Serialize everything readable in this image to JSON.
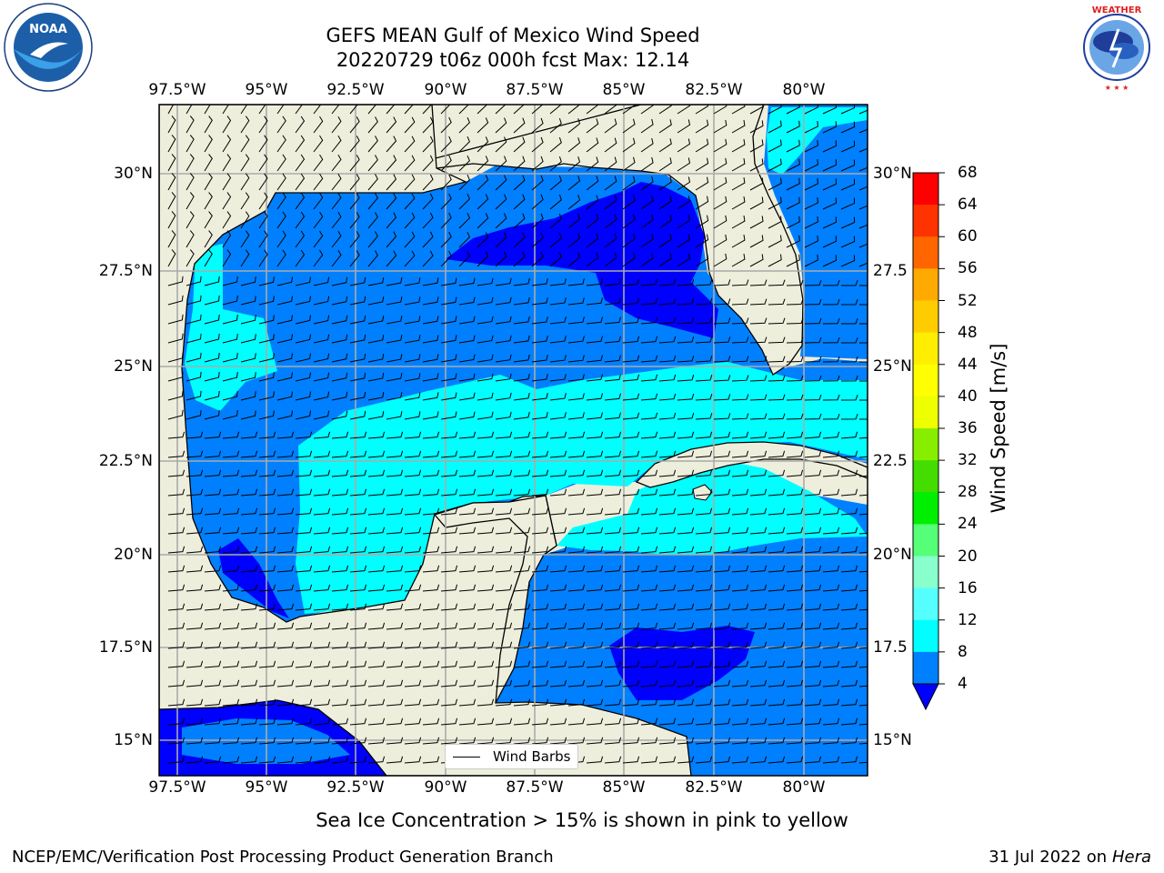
{
  "title": {
    "line1": "GEFS MEAN Gulf of Mexico Wind Speed",
    "line2": "20220729 t06z 000h fcst   Max: 12.14"
  },
  "axes": {
    "lon_labels": [
      "97.5°W",
      "95°W",
      "92.5°W",
      "90°W",
      "87.5°W",
      "85°W",
      "82.5°W",
      "80°W"
    ],
    "lat_labels_left": [
      "30°N",
      "27.5°N",
      "25°N",
      "22.5°N",
      "20°N",
      "17.5°N",
      "15°N"
    ],
    "lat_labels_right": [
      "30°N",
      "27.5",
      "25°N",
      "22.5",
      "20°N",
      "17.5",
      "15°N"
    ]
  },
  "colorbar": {
    "label": "Wind Speed [m/s]",
    "ticks": [
      "68",
      "64",
      "60",
      "56",
      "52",
      "48",
      "44",
      "40",
      "36",
      "32",
      "28",
      "24",
      "20",
      "16",
      "12",
      "8",
      "4"
    ],
    "colors": [
      "#ff0000",
      "#ff3300",
      "#ff6600",
      "#ff8800",
      "#ffaa00",
      "#ffcc00",
      "#ffee00",
      "#ffff00",
      "#eeff00",
      "#ccff00",
      "#88ee00",
      "#44dd00",
      "#00ee00",
      "#55ff77",
      "#88ffcc",
      "#99ffff",
      "#55ffff",
      "#00ffff",
      "#0080ff",
      "#0000ff"
    ]
  },
  "legend": {
    "label": "Wind Barbs"
  },
  "note": "Sea Ice Concentration > 15% is shown in pink to yellow",
  "footer": {
    "left": "NCEP/EMC/Verification Post Processing Product Generation Branch",
    "right_date": "31 Jul 2022 on ",
    "right_machine": "Hera"
  },
  "logos": {
    "noaa": "NOAA",
    "nws": "NATIONAL WEATHER SERVICE"
  },
  "map_colors": {
    "land": "#eeeedc",
    "speed_4_8": "#0080ff",
    "speed_8_12": "#00ffff",
    "speed_lt_4": "#0000ff"
  }
}
